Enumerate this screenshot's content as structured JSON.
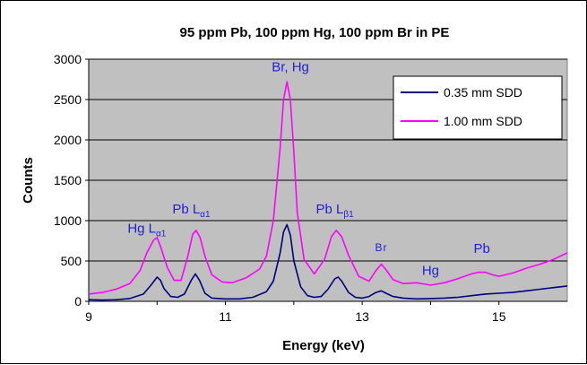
{
  "chart_data": {
    "type": "line",
    "title": "95 ppm Pb, 100 ppm Hg, 100 ppm Br in PE",
    "xlabel": "Energy (keV)",
    "ylabel": "Counts",
    "xlim": [
      9,
      16
    ],
    "ylim": [
      0,
      3000
    ],
    "xticks": [
      9,
      11,
      13,
      15
    ],
    "yticks": [
      0,
      500,
      1000,
      1500,
      2000,
      2500,
      3000
    ],
    "grid": "horizontal",
    "legend_position": "top-right",
    "background": "#c0c0c0",
    "series": [
      {
        "name": "0.35 mm SDD",
        "color": "#000080",
        "x": [
          9.0,
          9.2,
          9.4,
          9.6,
          9.8,
          9.9,
          10.0,
          10.05,
          10.1,
          10.2,
          10.3,
          10.4,
          10.5,
          10.56,
          10.62,
          10.7,
          10.8,
          11.0,
          11.2,
          11.4,
          11.6,
          11.7,
          11.8,
          11.85,
          11.9,
          11.95,
          12.0,
          12.1,
          12.2,
          12.3,
          12.4,
          12.5,
          12.6,
          12.65,
          12.7,
          12.8,
          12.9,
          13.0,
          13.1,
          13.2,
          13.28,
          13.35,
          13.45,
          13.6,
          13.8,
          14.0,
          14.2,
          14.4,
          14.6,
          14.8,
          15.0,
          15.2,
          15.4,
          15.6,
          15.8,
          16.0
        ],
        "y": [
          20,
          15,
          20,
          35,
          90,
          190,
          300,
          260,
          160,
          60,
          50,
          90,
          260,
          340,
          260,
          100,
          40,
          30,
          30,
          50,
          120,
          250,
          600,
          860,
          950,
          820,
          500,
          180,
          70,
          50,
          60,
          150,
          280,
          300,
          250,
          110,
          50,
          40,
          60,
          110,
          130,
          100,
          60,
          40,
          30,
          35,
          40,
          50,
          70,
          90,
          100,
          110,
          130,
          150,
          170,
          190
        ]
      },
      {
        "name": "1.00 mm SDD",
        "color": "#ff00ff",
        "x": [
          9.0,
          9.2,
          9.4,
          9.6,
          9.75,
          9.85,
          9.95,
          10.0,
          10.05,
          10.15,
          10.25,
          10.35,
          10.45,
          10.52,
          10.57,
          10.63,
          10.7,
          10.8,
          10.95,
          11.1,
          11.3,
          11.5,
          11.6,
          11.7,
          11.8,
          11.85,
          11.9,
          11.95,
          12.0,
          12.05,
          12.15,
          12.3,
          12.45,
          12.55,
          12.62,
          12.7,
          12.8,
          12.95,
          13.1,
          13.2,
          13.28,
          13.35,
          13.45,
          13.6,
          13.8,
          14.0,
          14.2,
          14.4,
          14.6,
          14.7,
          14.8,
          14.9,
          15.0,
          15.2,
          15.4,
          15.6,
          15.8,
          16.0
        ],
        "y": [
          90,
          110,
          150,
          220,
          380,
          600,
          760,
          790,
          680,
          420,
          260,
          260,
          560,
          830,
          880,
          790,
          560,
          330,
          240,
          230,
          290,
          400,
          560,
          1000,
          1900,
          2500,
          2720,
          2500,
          1850,
          1100,
          520,
          340,
          520,
          800,
          880,
          800,
          570,
          310,
          250,
          380,
          460,
          390,
          270,
          220,
          230,
          200,
          230,
          280,
          340,
          360,
          360,
          330,
          310,
          350,
          410,
          460,
          520,
          600
        ]
      }
    ],
    "annotations": [
      {
        "text": "Hg L",
        "sub": "α1",
        "x": 9.85,
        "y": 850,
        "style": "normal"
      },
      {
        "text": "Pb L",
        "sub": "α1",
        "x": 10.5,
        "y": 1090,
        "style": "normal"
      },
      {
        "text": "Br, Hg",
        "x": 11.95,
        "y": 2850,
        "style": "normal"
      },
      {
        "text": "Pb L",
        "sub": "β1",
        "x": 12.6,
        "y": 1090,
        "style": "normal"
      },
      {
        "text": "Br",
        "x": 13.28,
        "y": 620,
        "style": "small"
      },
      {
        "text": "Hg",
        "x": 14.0,
        "y": 330,
        "style": "normal"
      },
      {
        "text": "Pb",
        "x": 14.75,
        "y": 600,
        "style": "normal"
      }
    ]
  }
}
